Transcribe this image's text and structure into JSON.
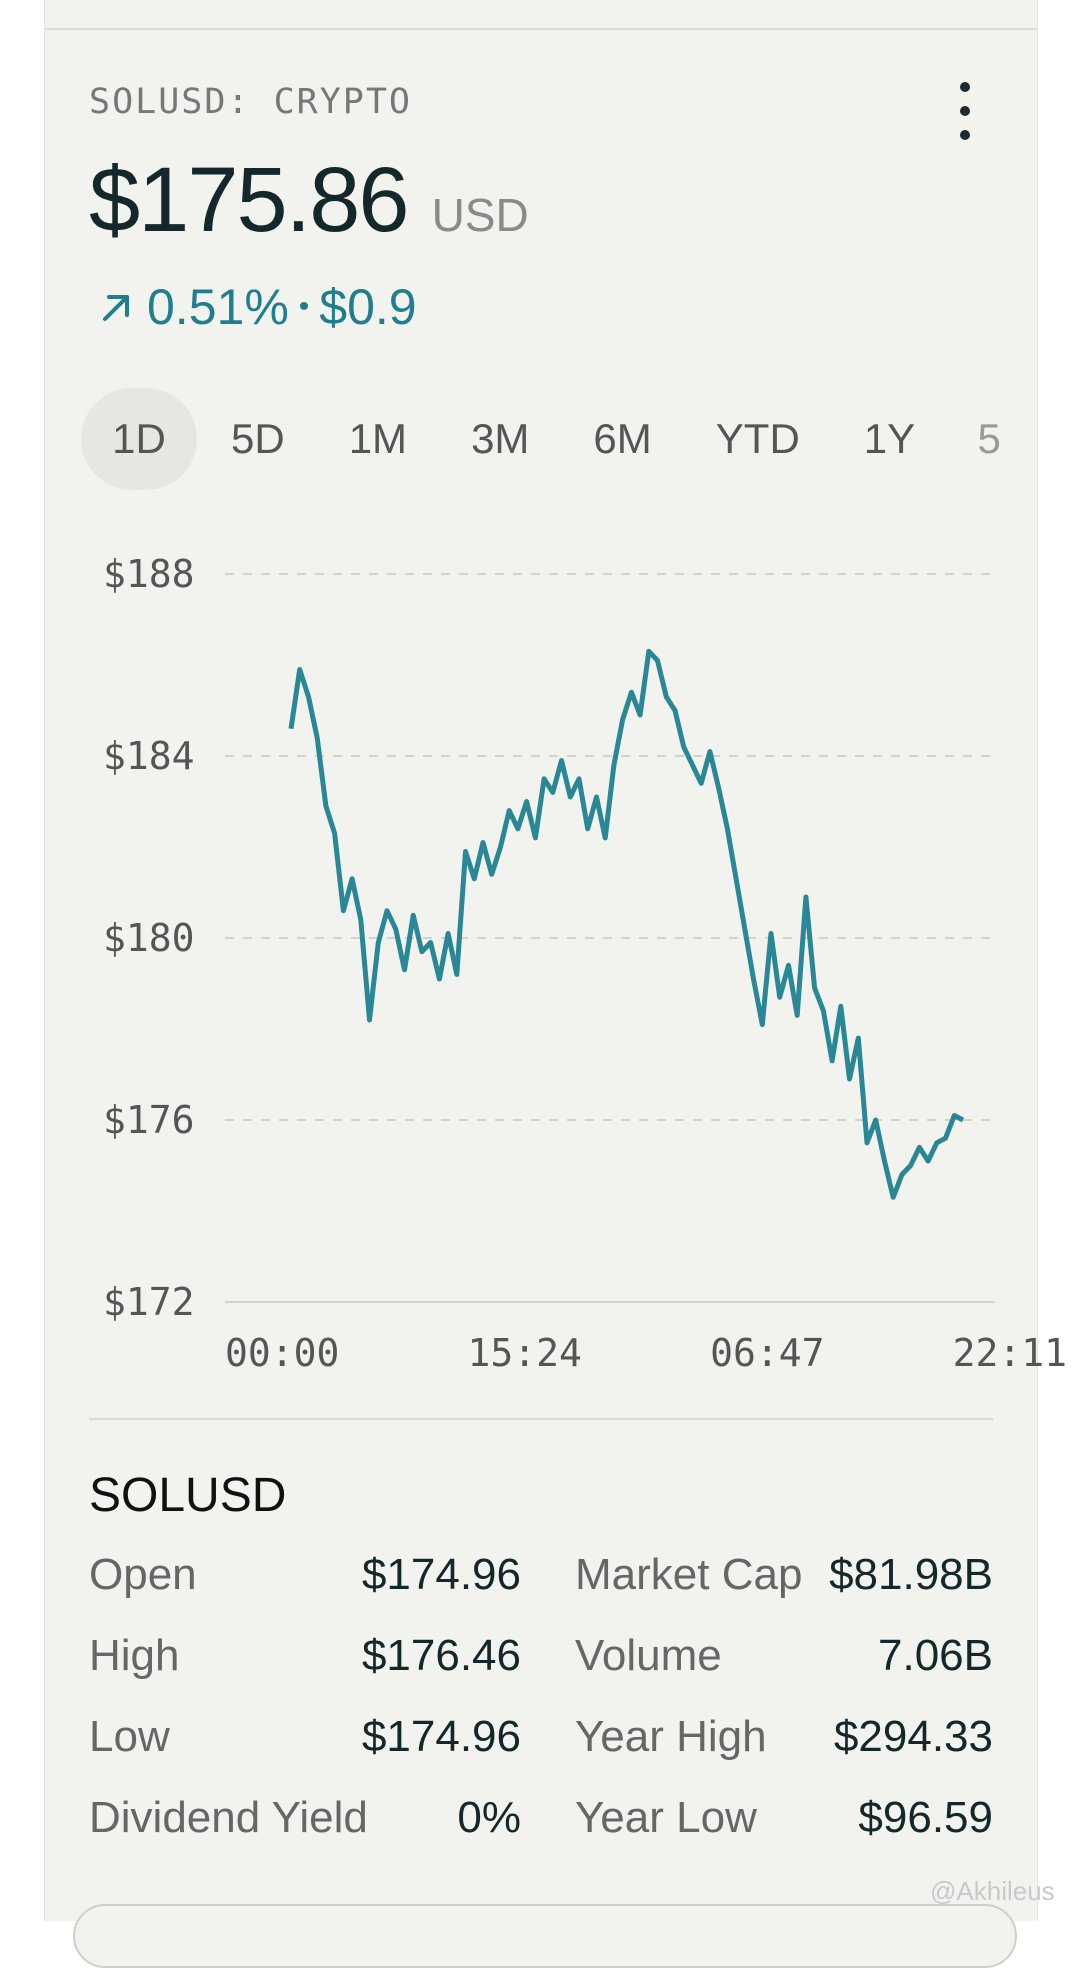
{
  "header": {
    "symbol_label": "SOLUSD: CRYPTO",
    "menu_icon": "more-vertical-icon"
  },
  "quote": {
    "price": "$175.86",
    "currency": "USD",
    "change_percent": "0.51%",
    "change_sep": "•",
    "change_value": "$0.9",
    "change_icon": "arrow-up-right-icon",
    "accent_color": "#1f7f8e"
  },
  "tabs": [
    {
      "label": "1D",
      "active": true
    },
    {
      "label": "5D"
    },
    {
      "label": "1M"
    },
    {
      "label": "3M"
    },
    {
      "label": "6M"
    },
    {
      "label": "YTD"
    },
    {
      "label": "1Y"
    },
    {
      "label": "5"
    }
  ],
  "chart_data": {
    "type": "line",
    "series_color": "#2a8796",
    "ylim": [
      172,
      188
    ],
    "y_ticks": [
      "$188",
      "$184",
      "$180",
      "$176",
      "$172"
    ],
    "y_tick_values": [
      188,
      184,
      180,
      176,
      172
    ],
    "x_ticks": [
      "00:00",
      "15:24",
      "06:47",
      "22:11"
    ],
    "xlim": [
      0,
      100
    ],
    "x_tick_positions": [
      0,
      31.5,
      63,
      94.5
    ],
    "grid": true,
    "values": [
      184.6,
      185.9,
      185.3,
      184.4,
      182.9,
      182.3,
      180.6,
      181.3,
      180.4,
      178.2,
      179.9,
      180.6,
      180.2,
      179.3,
      180.5,
      179.7,
      179.9,
      179.1,
      180.1,
      179.2,
      181.9,
      181.3,
      182.1,
      181.4,
      182.0,
      182.8,
      182.4,
      183.0,
      182.2,
      183.5,
      183.2,
      183.9,
      183.1,
      183.5,
      182.4,
      183.1,
      182.2,
      183.8,
      184.8,
      185.4,
      184.9,
      186.3,
      186.1,
      185.3,
      185.0,
      184.2,
      183.8,
      183.4,
      184.1,
      183.3,
      182.4,
      181.3,
      180.2,
      179.1,
      178.1,
      180.1,
      178.7,
      179.4,
      178.3,
      180.9,
      178.9,
      178.4,
      177.3,
      178.5,
      176.9,
      177.8,
      175.5,
      176.0,
      175.1,
      174.3,
      174.8,
      175.0,
      175.4,
      175.1,
      175.5,
      175.6,
      176.1,
      176.0
    ]
  },
  "stats": {
    "title": "SOLUSD",
    "rows": [
      {
        "k1": "Open",
        "v1": "$174.96",
        "k2": "Market Cap",
        "v2": "$81.98B"
      },
      {
        "k1": "High",
        "v1": "$176.46",
        "k2": "Volume",
        "v2": "7.06B"
      },
      {
        "k1": "Low",
        "v1": "$174.96",
        "k2": "Year High",
        "v2": "$294.33"
      },
      {
        "k1": "Dividend Yield",
        "v1": "0%",
        "k2": "Year Low",
        "v2": "$96.59"
      }
    ]
  },
  "watermark": "@Akhileus"
}
